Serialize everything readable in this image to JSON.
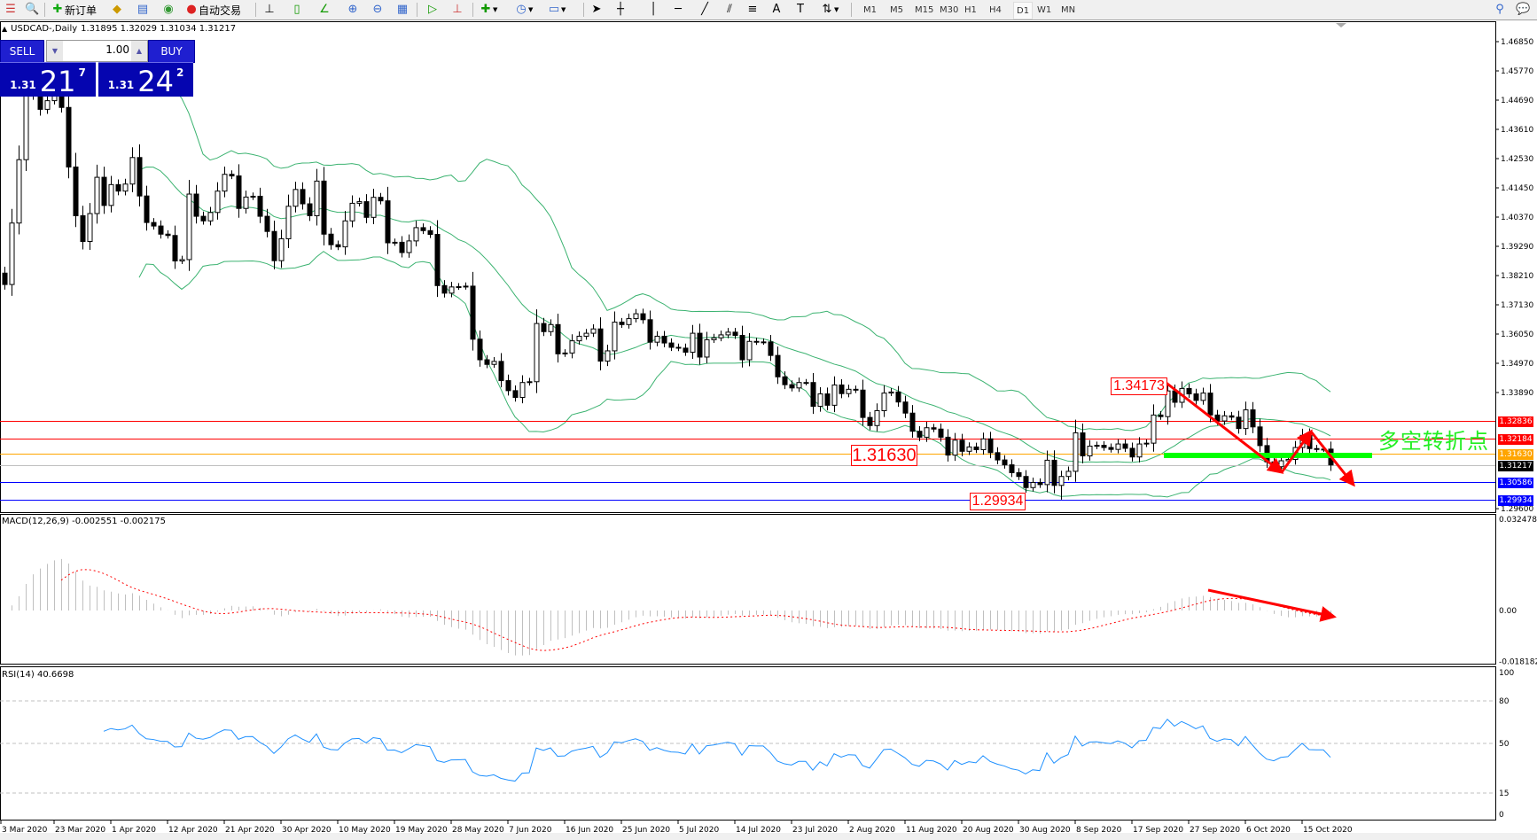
{
  "toolbar": {
    "new_order": "新订单",
    "auto_trading": "自动交易",
    "timeframes": [
      "M1",
      "M5",
      "M15",
      "M30",
      "H1",
      "H4",
      "D1",
      "W1",
      "MN"
    ],
    "active_timeframe": "D1"
  },
  "chart": {
    "symbol": "USDCAD-,Daily",
    "ohlc_text": "1.31895 1.32029 1.31034 1.31217"
  },
  "trade_widget": {
    "sell_label": "SELL",
    "buy_label": "BUY",
    "lot": "1.00",
    "sell_prefix": "1.31",
    "sell_big": "21",
    "sell_sup": "7",
    "buy_prefix": "1.31",
    "buy_big": "24",
    "buy_sup": "2"
  },
  "price_axis": [
    "1.46850",
    "1.45770",
    "1.44690",
    "1.43610",
    "1.42530",
    "1.41450",
    "1.40370",
    "1.39290",
    "1.38210",
    "1.37130",
    "1.36050",
    "1.34970",
    "1.33890",
    "1.29600"
  ],
  "hlines": [
    {
      "price": 1.32836,
      "label": "1.32836",
      "color": "#ff0000"
    },
    {
      "price": 1.32184,
      "label": "1.32184",
      "color": "#ff0000"
    },
    {
      "price": 1.3163,
      "label": "1.31630",
      "color": "#ffa500"
    },
    {
      "price": 1.31217,
      "label": "1.31217",
      "color": "#c0c0c0",
      "tag_color": "#000000"
    },
    {
      "price": 1.30586,
      "label": "1.30586",
      "color": "#0000ff"
    },
    {
      "price": 1.29934,
      "label": "1.29934",
      "color": "#0000ff"
    }
  ],
  "annotations": {
    "high_label": "1.34173",
    "pivot_label": "1.31630",
    "low_label": "1.29934",
    "turning_point_text": "多空转折点"
  },
  "macd": {
    "title": "MACD(12,26,9) -0.002551 -0.002175",
    "axis": [
      "0.032478",
      "0.00",
      "-0.018182"
    ]
  },
  "rsi": {
    "title": "RSI(14) 40.6698",
    "axis": [
      "100",
      "80",
      "50",
      "15",
      "0"
    ]
  },
  "dates": [
    "3 Mar 2020",
    "23 Mar 2020",
    "1 Apr 2020",
    "12 Apr 2020",
    "21 Apr 2020",
    "30 Apr 2020",
    "10 May 2020",
    "19 May 2020",
    "28 May 2020",
    "7 Jun 2020",
    "16 Jun 2020",
    "25 Jun 2020",
    "5 Jul 2020",
    "14 Jul 2020",
    "23 Jul 2020",
    "2 Aug 2020",
    "11 Aug 2020",
    "20 Aug 2020",
    "30 Aug 2020",
    "8 Sep 2020",
    "17 Sep 2020",
    "27 Sep 2020",
    "6 Oct 2020",
    "15 Oct 2020"
  ],
  "colors": {
    "bands": "#3cb371",
    "macd_signal": "#ff0000",
    "macd_hist": "#c0c0c0",
    "rsi": "#1e90ff",
    "arrows": "#ff0000",
    "support_line": "#00ff00"
  },
  "chart_data": {
    "type": "candlestick",
    "indicators": [
      "Bollinger Bands",
      "MACD(12,26,9)",
      "RSI(14)"
    ],
    "ylim": [
      1.296,
      1.4685
    ],
    "closes": [
      1.3788,
      1.4015,
      1.4249,
      1.4484,
      1.45,
      1.4435,
      1.4467,
      1.4484,
      1.4442,
      1.4222,
      1.4042,
      1.3947,
      1.405,
      1.4184,
      1.408,
      1.4157,
      1.4133,
      1.4159,
      1.4257,
      1.4115,
      1.4017,
      1.4004,
      1.3974,
      1.3969,
      1.3875,
      1.388,
      1.4122,
      1.404,
      1.4023,
      1.4054,
      1.4133,
      1.4195,
      1.4189,
      1.4069,
      1.4111,
      1.4114,
      1.404,
      1.3984,
      1.3876,
      1.3957,
      1.4077,
      1.4139,
      1.4086,
      1.4042,
      1.417,
      1.3974,
      1.3935,
      1.3927,
      1.4023,
      1.4088,
      1.4094,
      1.4036,
      1.411,
      1.4097,
      1.3942,
      1.3944,
      1.3906,
      1.3949,
      1.3998,
      1.3987,
      1.3973,
      1.3784,
      1.3756,
      1.3779,
      1.378,
      1.3782,
      1.3586,
      1.351,
      1.3493,
      1.3504,
      1.3433,
      1.3396,
      1.3371,
      1.3426,
      1.3429,
      1.3644,
      1.3614,
      1.364,
      1.3532,
      1.3535,
      1.358,
      1.3597,
      1.3608,
      1.3624,
      1.3505,
      1.3543,
      1.3649,
      1.364,
      1.3662,
      1.368,
      1.3658,
      1.3575,
      1.3597,
      1.3572,
      1.3556,
      1.3553,
      1.3538,
      1.3608,
      1.352,
      1.3584,
      1.3591,
      1.3602,
      1.3612,
      1.36,
      1.351,
      1.3578,
      1.3576,
      1.3576,
      1.3526,
      1.3447,
      1.3418,
      1.3406,
      1.3426,
      1.3426,
      1.3338,
      1.3384,
      1.3342,
      1.3417,
      1.3385,
      1.3401,
      1.3398,
      1.3297,
      1.3267,
      1.3322,
      1.3387,
      1.3391,
      1.3354,
      1.3313,
      1.3246,
      1.3224,
      1.3259,
      1.3254,
      1.3224,
      1.3158,
      1.3213,
      1.3172,
      1.3188,
      1.3178,
      1.3218,
      1.3167,
      1.314,
      1.3122,
      1.3093,
      1.3079,
      1.3038,
      1.3057,
      1.3049,
      1.3139,
      1.3046,
      1.3079,
      1.3098,
      1.324,
      1.3155,
      1.3191,
      1.3194,
      1.3186,
      1.3179,
      1.3199,
      1.3183,
      1.3151,
      1.3199,
      1.3202,
      1.3306,
      1.33,
      1.3395,
      1.3353,
      1.3404,
      1.3384,
      1.336,
      1.3387,
      1.3306,
      1.3284,
      1.3303,
      1.3298,
      1.3256,
      1.3325,
      1.3262,
      1.3193,
      1.3133,
      1.3115,
      1.3137,
      1.3142,
      1.3186,
      1.3231,
      1.3182,
      1.318,
      1.318,
      1.31217
    ],
    "low_price": 1.29934,
    "high_price": 1.34173
  }
}
